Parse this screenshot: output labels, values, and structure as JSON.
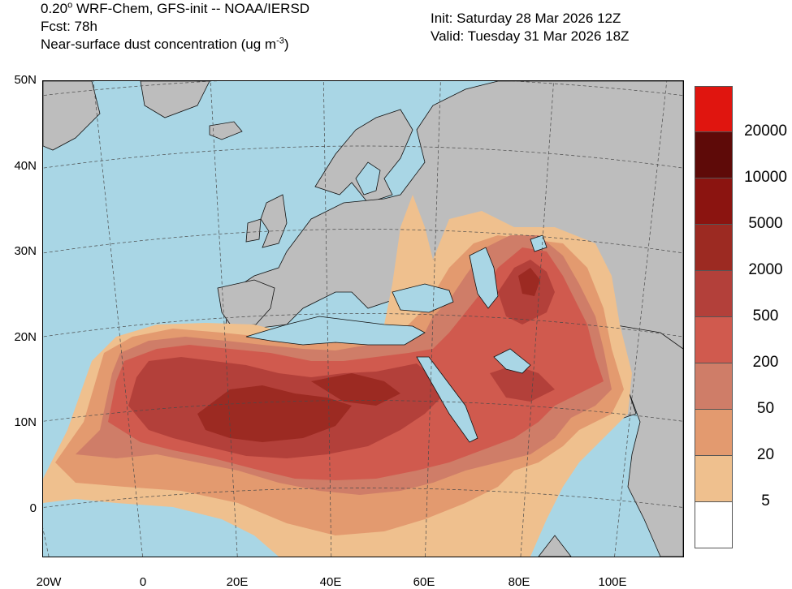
{
  "header": {
    "line1_value": "0.20",
    "line1_rest": " WRF-Chem, GFS-init -- NOAA/IERSD",
    "line2": "Fcst: 78h",
    "line3_prefix": "Near-surface dust concentration (ug m",
    "line3_exp": "-3",
    "line3_suffix": ")",
    "init": "Init: Saturday 28 Mar 2026  12Z",
    "valid": "Valid: Tuesday 31 Mar 2026  18Z"
  },
  "axes": {
    "y_labels": [
      "50N",
      "40N",
      "30N",
      "20N",
      "10N",
      "0"
    ],
    "x_labels": [
      "20W",
      "0",
      "20E",
      "40E",
      "60E",
      "80E",
      "100E"
    ]
  },
  "colorbar": {
    "labels": [
      "20000",
      "10000",
      "5000",
      "2000",
      "500",
      "200",
      "50",
      "20",
      "5"
    ],
    "colors": [
      "#e0150f",
      "#5e0a08",
      "#8b1410",
      "#9c2a22",
      "#b3403a",
      "#d05a4e",
      "#cf7d68",
      "#e39a6f",
      "#efc08e",
      "#ffffff"
    ]
  },
  "map_colors": {
    "ocean": "#a9d6e5",
    "land": "#bdbdbd",
    "grid": "#4a4a4a",
    "coast": "#111111"
  }
}
